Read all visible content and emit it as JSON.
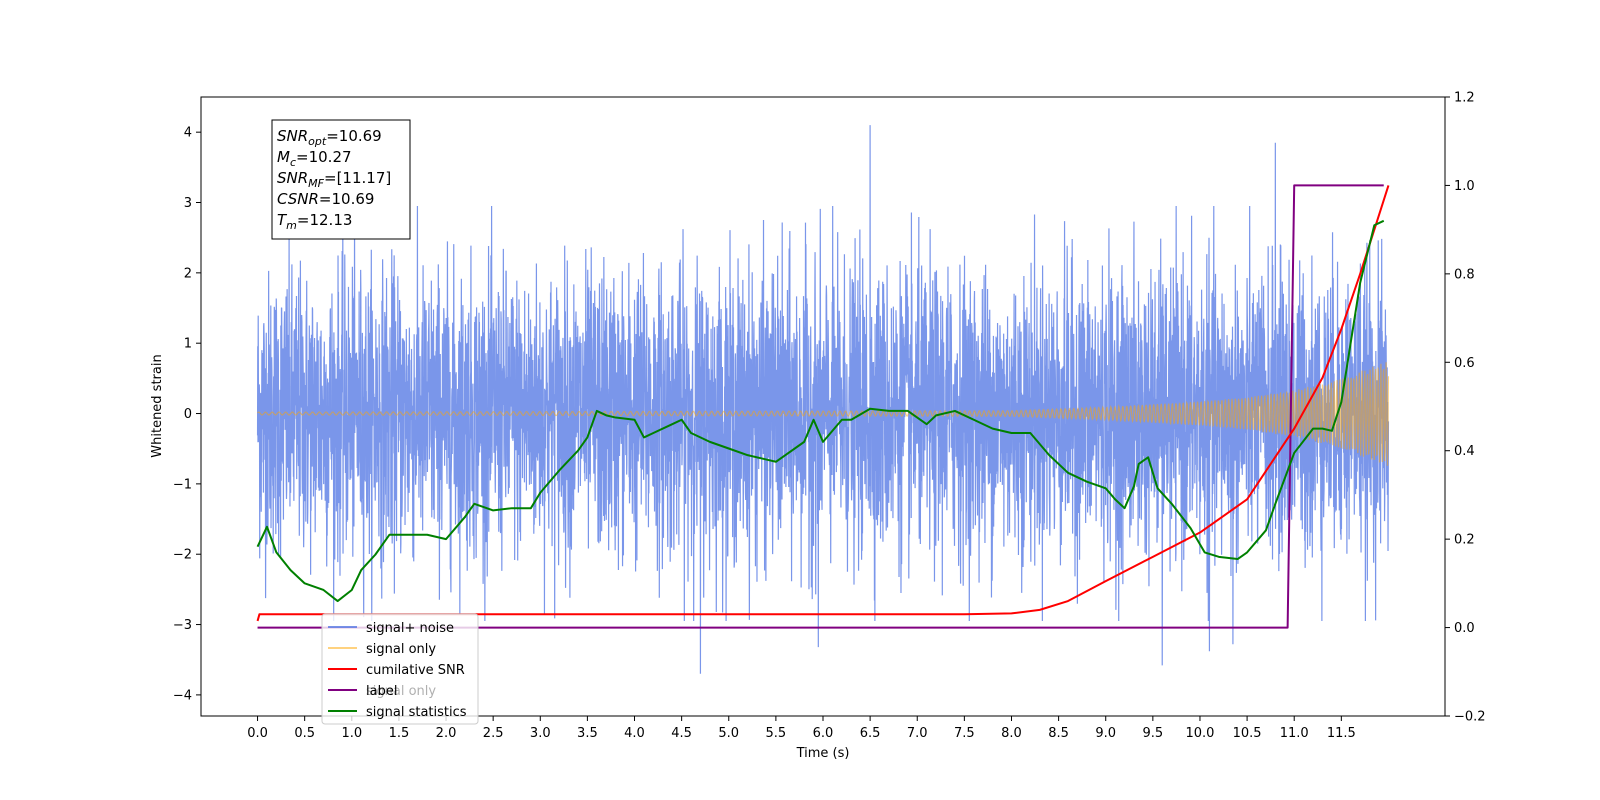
{
  "chart_data": {
    "type": "line",
    "xlabel": "Time (s)",
    "ylabel": "Whitened strain",
    "xlim": [
      -0.6,
      12.6
    ],
    "ylim": [
      -4.3,
      4.5
    ],
    "y2lim": [
      -0.2,
      1.2
    ],
    "x_ticks": [
      "0.0",
      "0.5",
      "1.0",
      "1.5",
      "2.0",
      "2.5",
      "3.0",
      "3.5",
      "4.0",
      "4.5",
      "5.0",
      "5.5",
      "6.0",
      "6.5",
      "7.0",
      "7.5",
      "8.0",
      "8.5",
      "9.0",
      "9.5",
      "10.0",
      "10.5",
      "11.0",
      "11.5"
    ],
    "y_ticks": [
      "-4",
      "-3",
      "-2",
      "-1",
      "0",
      "1",
      "2",
      "3",
      "4"
    ],
    "y2_ticks": [
      "-0.2",
      "0.0",
      "0.2",
      "0.4",
      "0.6",
      "0.8",
      "1.0",
      "1.2"
    ],
    "info_box": [
      {
        "sym": "SNR",
        "sub": "opt",
        "val": "=10.69"
      },
      {
        "sym": "M",
        "sub": "c",
        "val": "=10.27"
      },
      {
        "sym": "SNR",
        "sub": "MF",
        "val": "=[11.17]"
      },
      {
        "sym": "CSNR",
        "sub": "",
        "val": "=10.69"
      },
      {
        "sym": "T",
        "sub": "m",
        "val": "=12.13"
      }
    ],
    "legend": {
      "placement": "lower-left",
      "entries": [
        {
          "label": "signal+ noise",
          "color": "#4169e1",
          "alpha": 0.7
        },
        {
          "label": "signal only",
          "color": "#ffa500",
          "alpha": 0.5
        },
        {
          "label": "cumilative SNR",
          "color": "#ff0000",
          "alpha": 1
        },
        {
          "label": "label",
          "color": "#800080",
          "alpha": 1
        },
        {
          "label": "signal statistics",
          "color": "#008000",
          "alpha": 1
        }
      ],
      "ghost_text": "signal only"
    },
    "series": [
      {
        "name": "signal+ noise",
        "axis": "left",
        "color": "#4169e1",
        "alpha": 0.7,
        "t_start": 0,
        "t_end": 12,
        "noise_sigma": 1.0,
        "peaks": [
          [
            6.5,
            4.1
          ],
          [
            10.8,
            3.85
          ],
          [
            4.7,
            -3.7
          ],
          [
            9.6,
            -3.58
          ],
          [
            10.1,
            -3.38
          ],
          [
            10.35,
            -3.28
          ],
          [
            5.95,
            -3.32
          ]
        ]
      },
      {
        "name": "signal only",
        "axis": "left",
        "color": "#ffa500",
        "alpha": 0.5,
        "envelope": [
          [
            0,
            0.02
          ],
          [
            8.0,
            0.04
          ],
          [
            9.0,
            0.09
          ],
          [
            10.0,
            0.17
          ],
          [
            10.5,
            0.23
          ],
          [
            11.0,
            0.33
          ],
          [
            11.5,
            0.5
          ],
          [
            12.0,
            0.75
          ]
        ]
      },
      {
        "name": "cumilative SNR",
        "axis": "right",
        "color": "#ff0000",
        "points": [
          [
            0,
            0.015
          ],
          [
            0.02,
            0.03
          ],
          [
            7.5,
            0.03
          ],
          [
            8.0,
            0.032
          ],
          [
            8.3,
            0.04
          ],
          [
            8.6,
            0.06
          ],
          [
            9.0,
            0.105
          ],
          [
            9.5,
            0.16
          ],
          [
            10.0,
            0.215
          ],
          [
            10.5,
            0.29
          ],
          [
            11.0,
            0.45
          ],
          [
            11.3,
            0.565
          ],
          [
            11.5,
            0.675
          ],
          [
            11.7,
            0.8
          ],
          [
            11.85,
            0.9
          ],
          [
            12.0,
            1.0
          ]
        ]
      },
      {
        "name": "label",
        "axis": "right",
        "color": "#800080",
        "points": [
          [
            0,
            0.0
          ],
          [
            10.93,
            0.0
          ],
          [
            11.0,
            1.0
          ],
          [
            11.95,
            1.0
          ]
        ]
      },
      {
        "name": "signal statistics",
        "axis": "right",
        "color": "#008000",
        "points": [
          [
            0,
            0.183
          ],
          [
            0.1,
            0.228
          ],
          [
            0.2,
            0.17
          ],
          [
            0.35,
            0.13
          ],
          [
            0.5,
            0.1
          ],
          [
            0.7,
            0.085
          ],
          [
            0.85,
            0.06
          ],
          [
            1.0,
            0.085
          ],
          [
            1.1,
            0.13
          ],
          [
            1.25,
            0.165
          ],
          [
            1.4,
            0.21
          ],
          [
            1.6,
            0.21
          ],
          [
            1.8,
            0.21
          ],
          [
            2.0,
            0.2
          ],
          [
            2.2,
            0.25
          ],
          [
            2.3,
            0.28
          ],
          [
            2.5,
            0.265
          ],
          [
            2.7,
            0.27
          ],
          [
            2.9,
            0.27
          ],
          [
            3.0,
            0.305
          ],
          [
            3.2,
            0.355
          ],
          [
            3.4,
            0.4
          ],
          [
            3.5,
            0.43
          ],
          [
            3.6,
            0.49
          ],
          [
            3.7,
            0.48
          ],
          [
            3.8,
            0.475
          ],
          [
            4.0,
            0.47
          ],
          [
            4.1,
            0.43
          ],
          [
            4.2,
            0.44
          ],
          [
            4.4,
            0.46
          ],
          [
            4.5,
            0.47
          ],
          [
            4.6,
            0.44
          ],
          [
            4.8,
            0.42
          ],
          [
            5.0,
            0.405
          ],
          [
            5.2,
            0.39
          ],
          [
            5.4,
            0.38
          ],
          [
            5.5,
            0.375
          ],
          [
            5.6,
            0.39
          ],
          [
            5.8,
            0.42
          ],
          [
            5.9,
            0.47
          ],
          [
            6.0,
            0.42
          ],
          [
            6.2,
            0.47
          ],
          [
            6.3,
            0.47
          ],
          [
            6.5,
            0.495
          ],
          [
            6.7,
            0.49
          ],
          [
            6.9,
            0.49
          ],
          [
            7.1,
            0.46
          ],
          [
            7.2,
            0.48
          ],
          [
            7.4,
            0.49
          ],
          [
            7.6,
            0.47
          ],
          [
            7.8,
            0.45
          ],
          [
            8.0,
            0.44
          ],
          [
            8.2,
            0.44
          ],
          [
            8.4,
            0.39
          ],
          [
            8.6,
            0.35
          ],
          [
            8.8,
            0.33
          ],
          [
            9.0,
            0.315
          ],
          [
            9.1,
            0.29
          ],
          [
            9.2,
            0.27
          ],
          [
            9.3,
            0.32
          ],
          [
            9.35,
            0.37
          ],
          [
            9.45,
            0.385
          ],
          [
            9.55,
            0.315
          ],
          [
            9.7,
            0.28
          ],
          [
            9.9,
            0.225
          ],
          [
            10.05,
            0.17
          ],
          [
            10.2,
            0.16
          ],
          [
            10.4,
            0.155
          ],
          [
            10.5,
            0.17
          ],
          [
            10.7,
            0.22
          ],
          [
            10.8,
            0.28
          ],
          [
            11.0,
            0.395
          ],
          [
            11.2,
            0.45
          ],
          [
            11.3,
            0.45
          ],
          [
            11.4,
            0.445
          ],
          [
            11.5,
            0.51
          ],
          [
            11.7,
            0.78
          ],
          [
            11.85,
            0.91
          ],
          [
            11.95,
            0.92
          ]
        ]
      }
    ]
  }
}
